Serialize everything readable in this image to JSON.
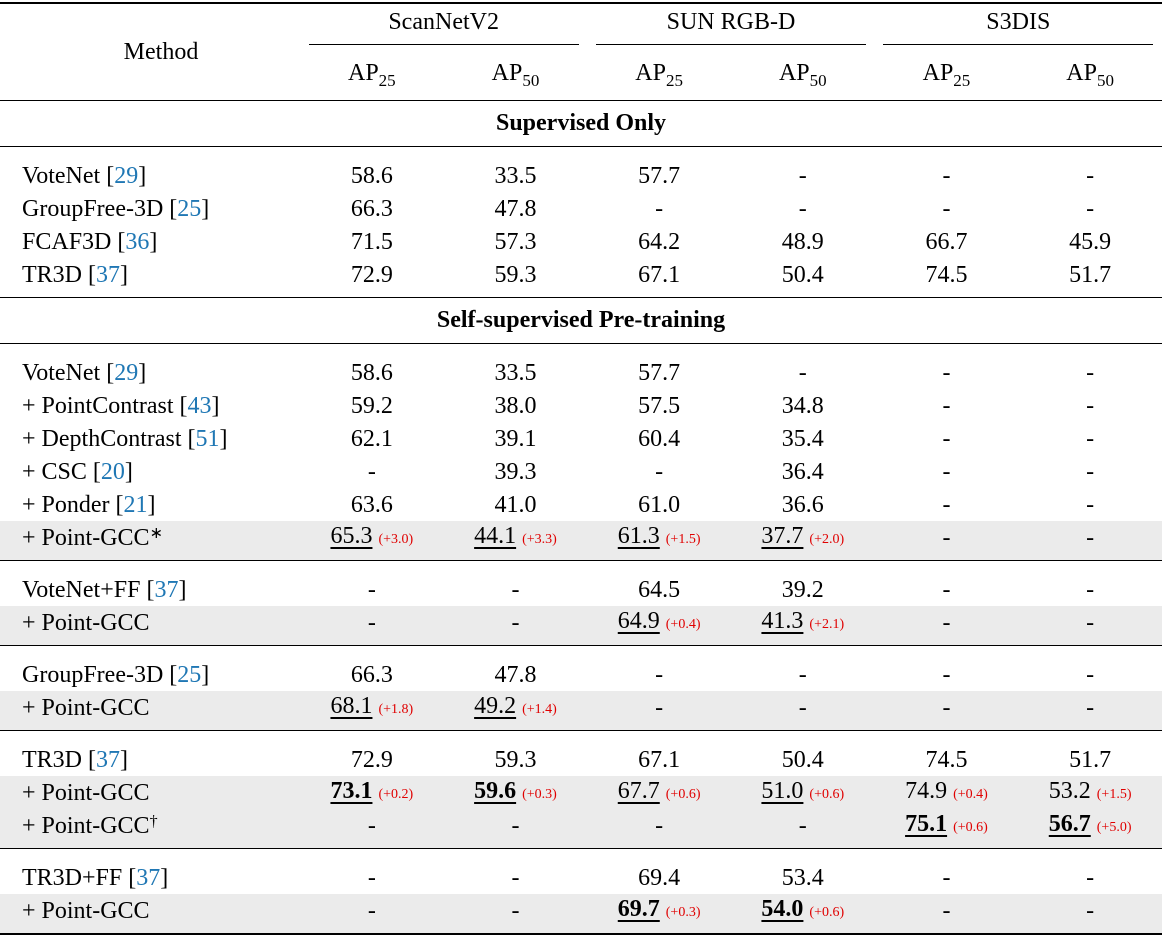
{
  "header": {
    "method": "Method",
    "groups": [
      "ScanNetV2",
      "SUN RGB-D",
      "S3DIS"
    ],
    "metrics": [
      {
        "base": "AP",
        "sub": "25"
      },
      {
        "base": "AP",
        "sub": "50"
      },
      {
        "base": "AP",
        "sub": "25"
      },
      {
        "base": "AP",
        "sub": "50"
      },
      {
        "base": "AP",
        "sub": "25"
      },
      {
        "base": "AP",
        "sub": "50"
      }
    ]
  },
  "sections": [
    {
      "title": "Supervised Only",
      "blocks": [
        [
          {
            "method": [
              {
                "text": "VoteNet ["
              },
              {
                "text": "29",
                "cite": true
              },
              {
                "text": "]"
              }
            ],
            "cells": [
              "58.6",
              "33.5",
              "57.7",
              "-",
              "-",
              "-"
            ]
          },
          {
            "method": [
              {
                "text": "GroupFree-3D ["
              },
              {
                "text": "25",
                "cite": true
              },
              {
                "text": "]"
              }
            ],
            "cells": [
              "66.3",
              "47.8",
              "-",
              "-",
              "-",
              "-"
            ]
          },
          {
            "method": [
              {
                "text": "FCAF3D ["
              },
              {
                "text": "36",
                "cite": true
              },
              {
                "text": "]"
              }
            ],
            "cells": [
              "71.5",
              "57.3",
              "64.2",
              "48.9",
              "66.7",
              "45.9"
            ]
          },
          {
            "method": [
              {
                "text": "TR3D ["
              },
              {
                "text": "37",
                "cite": true
              },
              {
                "text": "]"
              }
            ],
            "cells": [
              "72.9",
              "59.3",
              "67.1",
              "50.4",
              "74.5",
              "51.7"
            ]
          }
        ]
      ]
    },
    {
      "title": "Self-supervised Pre-training",
      "blocks": [
        [
          {
            "method": [
              {
                "text": "VoteNet ["
              },
              {
                "text": "29",
                "cite": true
              },
              {
                "text": "]"
              }
            ],
            "cells": [
              "58.6",
              "33.5",
              "57.7",
              "-",
              "-",
              "-"
            ]
          },
          {
            "method": [
              {
                "text": "+ PointContrast ["
              },
              {
                "text": "43",
                "cite": true
              },
              {
                "text": "]"
              }
            ],
            "cells": [
              "59.2",
              "38.0",
              "57.5",
              "34.8",
              "-",
              "-"
            ]
          },
          {
            "method": [
              {
                "text": "+ DepthContrast ["
              },
              {
                "text": "51",
                "cite": true
              },
              {
                "text": "]"
              }
            ],
            "cells": [
              "62.1",
              "39.1",
              "60.4",
              "35.4",
              "-",
              "-"
            ]
          },
          {
            "method": [
              {
                "text": "+ CSC ["
              },
              {
                "text": "20",
                "cite": true
              },
              {
                "text": "]"
              }
            ],
            "cells": [
              "-",
              "39.3",
              "-",
              "36.4",
              "-",
              "-"
            ]
          },
          {
            "method": [
              {
                "text": "+ Ponder ["
              },
              {
                "text": "21",
                "cite": true
              },
              {
                "text": "]"
              }
            ],
            "cells": [
              "63.6",
              "41.0",
              "61.0",
              "36.6",
              "-",
              "-"
            ]
          },
          {
            "shade": true,
            "method": [
              {
                "text": "+ Point-GCC"
              },
              {
                "text": "∗",
                "sup": true
              }
            ],
            "cells": [
              {
                "value": "65.3",
                "delta": "(+3.0)",
                "underline": true
              },
              {
                "value": "44.1",
                "delta": "(+3.3)",
                "underline": true
              },
              {
                "value": "61.3",
                "delta": "(+1.5)",
                "underline": true
              },
              {
                "value": "37.7",
                "delta": "(+2.0)",
                "underline": true
              },
              "-",
              "-"
            ]
          }
        ],
        [
          {
            "method": [
              {
                "text": "VoteNet+FF ["
              },
              {
                "text": "37",
                "cite": true
              },
              {
                "text": "]"
              }
            ],
            "cells": [
              "-",
              "-",
              "64.5",
              "39.2",
              "-",
              "-"
            ]
          },
          {
            "shade": true,
            "method": [
              {
                "text": "+ Point-GCC"
              }
            ],
            "cells": [
              "-",
              "-",
              {
                "value": "64.9",
                "delta": "(+0.4)",
                "underline": true
              },
              {
                "value": "41.3",
                "delta": "(+2.1)",
                "underline": true
              },
              "-",
              "-"
            ]
          }
        ],
        [
          {
            "method": [
              {
                "text": "GroupFree-3D ["
              },
              {
                "text": "25",
                "cite": true
              },
              {
                "text": "]"
              }
            ],
            "cells": [
              "66.3",
              "47.8",
              "-",
              "-",
              "-",
              "-"
            ]
          },
          {
            "shade": true,
            "method": [
              {
                "text": "+ Point-GCC"
              }
            ],
            "cells": [
              {
                "value": "68.1",
                "delta": "(+1.8)",
                "underline": true
              },
              {
                "value": "49.2",
                "delta": "(+1.4)",
                "underline": true
              },
              "-",
              "-",
              "-",
              "-"
            ]
          }
        ],
        [
          {
            "method": [
              {
                "text": "TR3D ["
              },
              {
                "text": "37",
                "cite": true
              },
              {
                "text": "]"
              }
            ],
            "cells": [
              "72.9",
              "59.3",
              "67.1",
              "50.4",
              "74.5",
              "51.7"
            ]
          },
          {
            "shade": true,
            "method": [
              {
                "text": "+ Point-GCC"
              }
            ],
            "cells": [
              {
                "value": "73.1",
                "delta": "(+0.2)",
                "underline": true,
                "bold": true
              },
              {
                "value": "59.6",
                "delta": "(+0.3)",
                "underline": true,
                "bold": true
              },
              {
                "value": "67.7",
                "delta": "(+0.6)",
                "underline": true
              },
              {
                "value": "51.0",
                "delta": "(+0.6)",
                "underline": true
              },
              {
                "value": "74.9",
                "delta": "(+0.4)"
              },
              {
                "value": "53.2",
                "delta": "(+1.5)"
              }
            ]
          },
          {
            "shade": true,
            "method": [
              {
                "text": "+ Point-GCC"
              },
              {
                "text": "†",
                "sup": true
              }
            ],
            "cells": [
              "-",
              "-",
              "-",
              "-",
              {
                "value": "75.1",
                "delta": "(+0.6)",
                "underline": true,
                "bold": true
              },
              {
                "value": "56.7",
                "delta": "(+5.0)",
                "underline": true,
                "bold": true
              }
            ]
          }
        ],
        [
          {
            "method": [
              {
                "text": "TR3D+FF ["
              },
              {
                "text": "37",
                "cite": true
              },
              {
                "text": "]"
              }
            ],
            "cells": [
              "-",
              "-",
              "69.4",
              "53.4",
              "-",
              "-"
            ]
          },
          {
            "shade": true,
            "method": [
              {
                "text": "+ Point-GCC"
              }
            ],
            "cells": [
              "-",
              "-",
              {
                "value": "69.7",
                "delta": "(+0.3)",
                "underline": true,
                "bold": true
              },
              {
                "value": "54.0",
                "delta": "(+0.6)",
                "underline": true,
                "bold": true
              },
              "-",
              "-"
            ]
          }
        ]
      ]
    }
  ]
}
